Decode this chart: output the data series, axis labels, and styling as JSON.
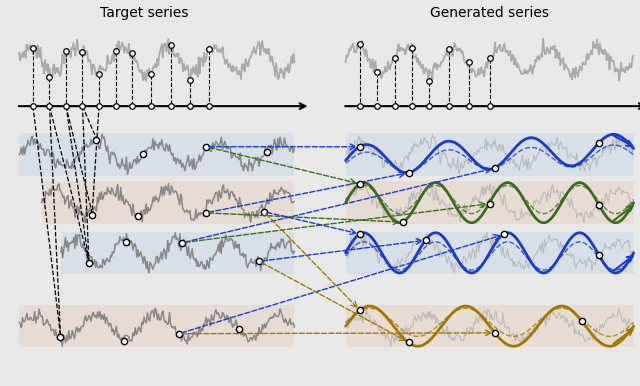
{
  "title_left": "Target series",
  "title_right": "Generated series",
  "gray_series": "#aaaaaa",
  "gray_dark": "#888888",
  "blue_bg": "#c8d8ea",
  "pink_bg": "#e8cfc0",
  "blue_color": "#1a3acc",
  "green_color": "#3a6e1a",
  "gold_color": "#a07800",
  "figsize": [
    6.4,
    3.86
  ],
  "dpi": 100,
  "bg_color": "#e8e8e8"
}
